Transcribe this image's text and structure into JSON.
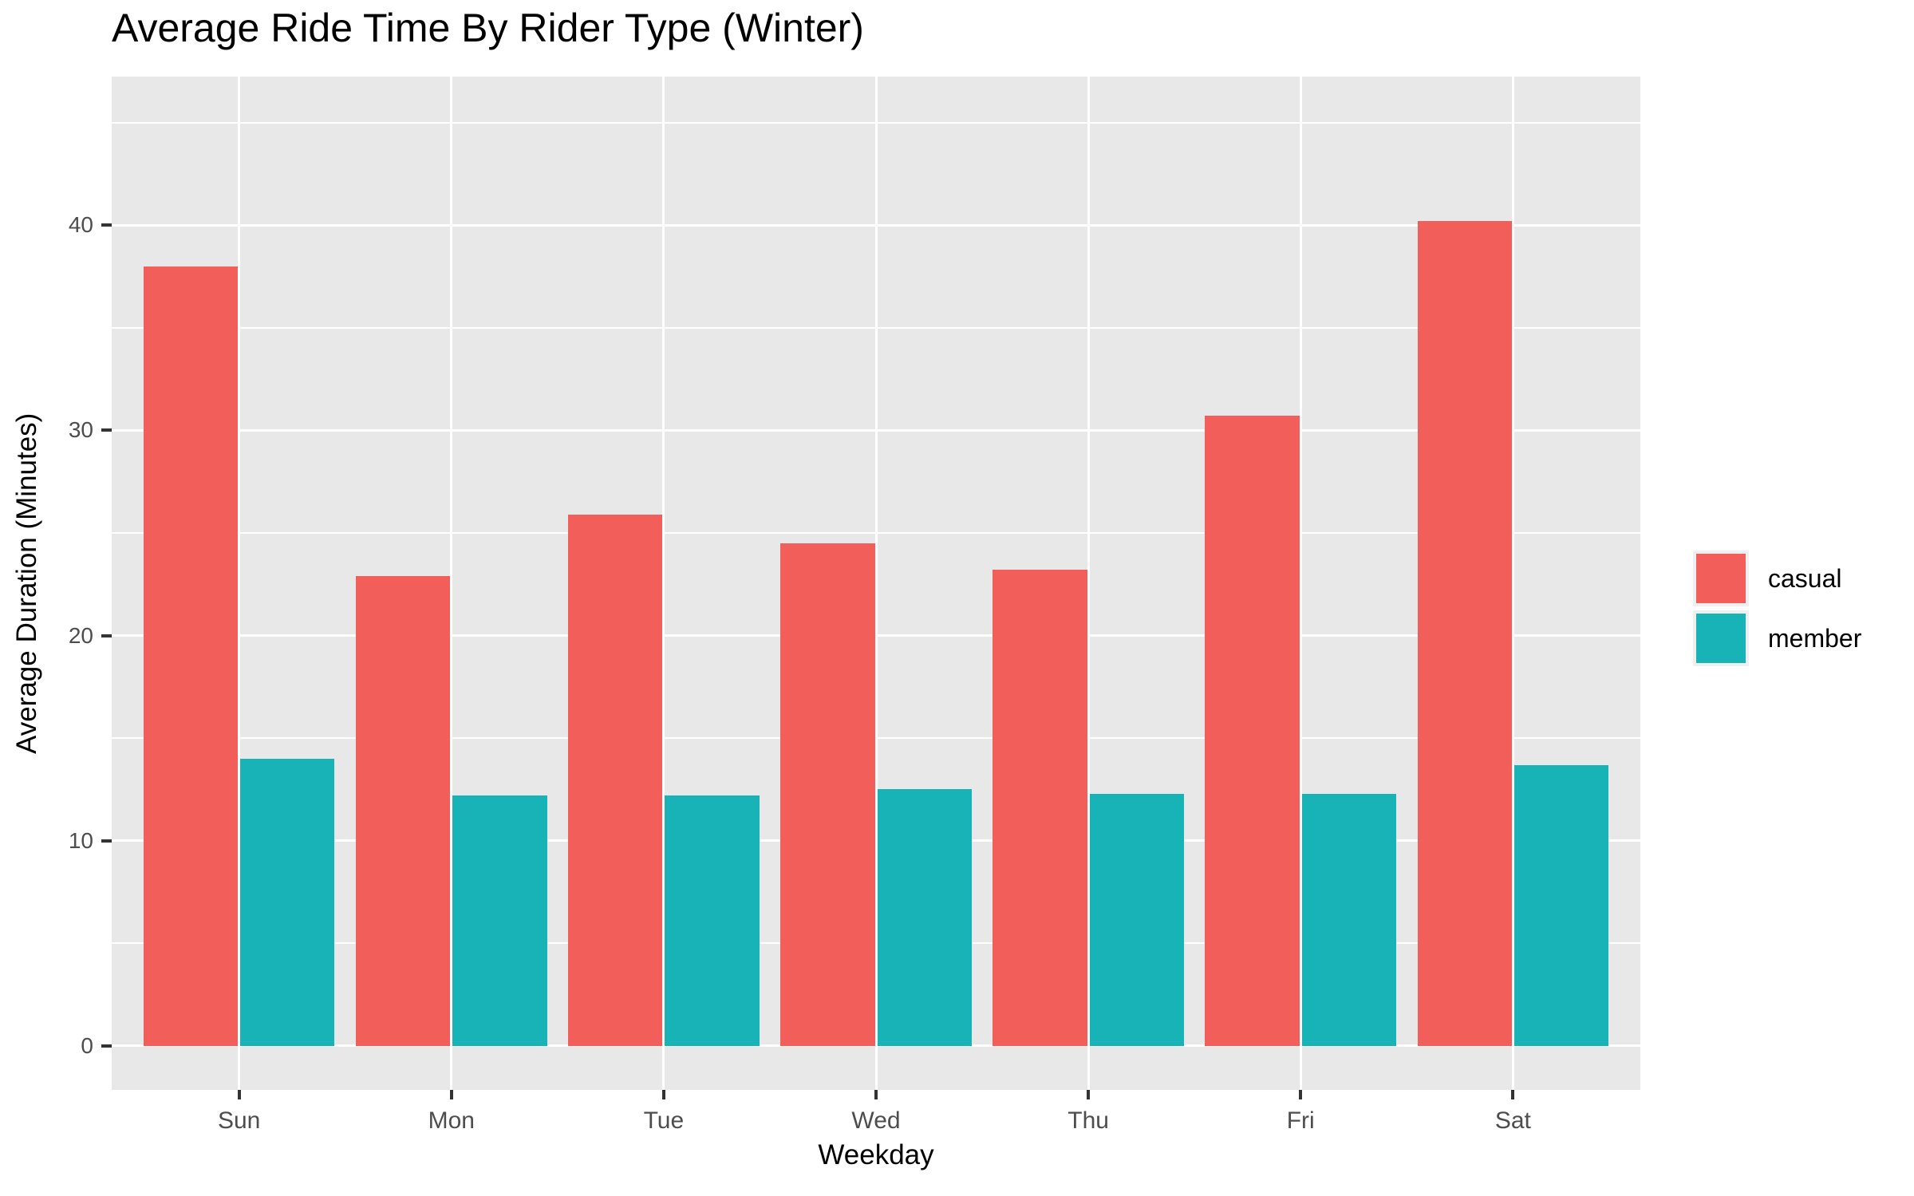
{
  "title": "Average Ride Time By Rider Type (Winter)",
  "chart_data": {
    "type": "bar",
    "grouping": "dodged",
    "title": "Average Ride Time By Rider Type (Winter)",
    "xlabel": "Weekday",
    "ylabel": "Average Duration (Minutes)",
    "categories": [
      "Sun",
      "Mon",
      "Tue",
      "Wed",
      "Thu",
      "Fri",
      "Sat"
    ],
    "series": [
      {
        "name": "casual",
        "color": "#F25F5A",
        "values": [
          38.0,
          22.9,
          25.9,
          24.5,
          23.2,
          30.7,
          40.2
        ]
      },
      {
        "name": "member",
        "color": "#18B3B6",
        "values": [
          14.0,
          12.2,
          12.2,
          12.5,
          12.3,
          12.3,
          13.7
        ]
      }
    ],
    "y_ticks": [
      0,
      10,
      20,
      30,
      40
    ],
    "y_minor_ticks": [
      5,
      15,
      25,
      35,
      45
    ],
    "ylim": [
      -2.15,
      47.25
    ],
    "grid": true,
    "legend_position": "right",
    "theme": {
      "panel_bg": "#E8E8E8",
      "grid_color": "#FFFFFF",
      "axis_text_color": "#4D4D4D",
      "tick_color": "#333333",
      "text_color": "#000000",
      "legend_key_bg": "#EFEFEF"
    }
  }
}
